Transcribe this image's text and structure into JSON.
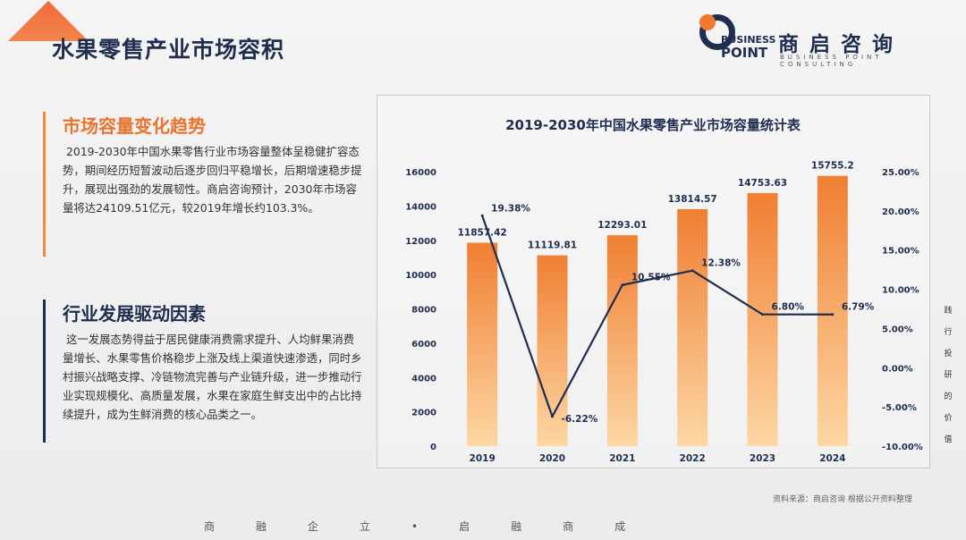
{
  "header": {
    "title": "水果零售产业市场容积"
  },
  "logo": {
    "word1": "BUSINESS",
    "word2": "POINT",
    "cn": "商启咨询",
    "en": "BUSINESS POINT CONSULTING"
  },
  "sections": [
    {
      "title": "市场容量变化趋势",
      "text": "2019-2030年中国水果零售行业市场容量整体呈稳健扩容态势，期间经历短暂波动后逐步回归平稳增长，后期增速稳步提升，展现出强劲的发展韧性。商启咨询预计，2030年市场容量将达24109.51亿元，较2019年增长约103.3%。"
    },
    {
      "title": "行业发展驱动因素",
      "text": "这一发展态势得益于居民健康消费需求提升、人均鲜果消费量增长、水果零售价格稳步上涨及线上渠道快速渗透，同时乡村振兴战略支撑、冷链物流完善与产业链升级，进一步推动行业实现规模化、高质量发展，水果在家庭生鲜支出中的占比持续提升，成为生鲜消费的核心品类之一。"
    }
  ],
  "chart_data": {
    "type": "bar",
    "title": "2019-2030年中国水果零售产业市场容量统计表",
    "categories": [
      "2019",
      "2020",
      "2021",
      "2022",
      "2023",
      "2024"
    ],
    "series": [
      {
        "type": "bar",
        "values": [
          11857.42,
          11119.81,
          12293.01,
          13814.57,
          14753.63,
          15755.2
        ],
        "labels": [
          "11857.42",
          "11119.81",
          "12293.01",
          "13814.57",
          "14753.63",
          "15755.2"
        ]
      },
      {
        "type": "line",
        "axis": "right",
        "values": [
          19.38,
          -6.22,
          10.55,
          12.38,
          6.8,
          6.79
        ],
        "labels": [
          "19.38%",
          "-6.22%",
          "10.55%",
          "12.38%",
          "6.80%",
          "6.79%"
        ]
      }
    ],
    "ylim": [
      0,
      16000
    ],
    "yticks": [
      "0",
      "2000",
      "4000",
      "6000",
      "8000",
      "10000",
      "12000",
      "14000",
      "16000"
    ],
    "y2lim": [
      -10,
      25
    ],
    "y2ticks": [
      "-10.00%",
      "-5.00%",
      "0.00%",
      "5.00%",
      "10.00%",
      "15.00%",
      "20.00%",
      "25.00%"
    ],
    "colors": {
      "bar_top": "#ef7f33",
      "bar_bottom": "#fdd7a4",
      "line": "#1f2d4f"
    }
  },
  "side_note": [
    "践",
    "行",
    "投",
    "研",
    "的",
    "价",
    "值"
  ],
  "source": "资料来源：商启咨询 根据公开资料整理",
  "footer": "商融企立•启融商成"
}
